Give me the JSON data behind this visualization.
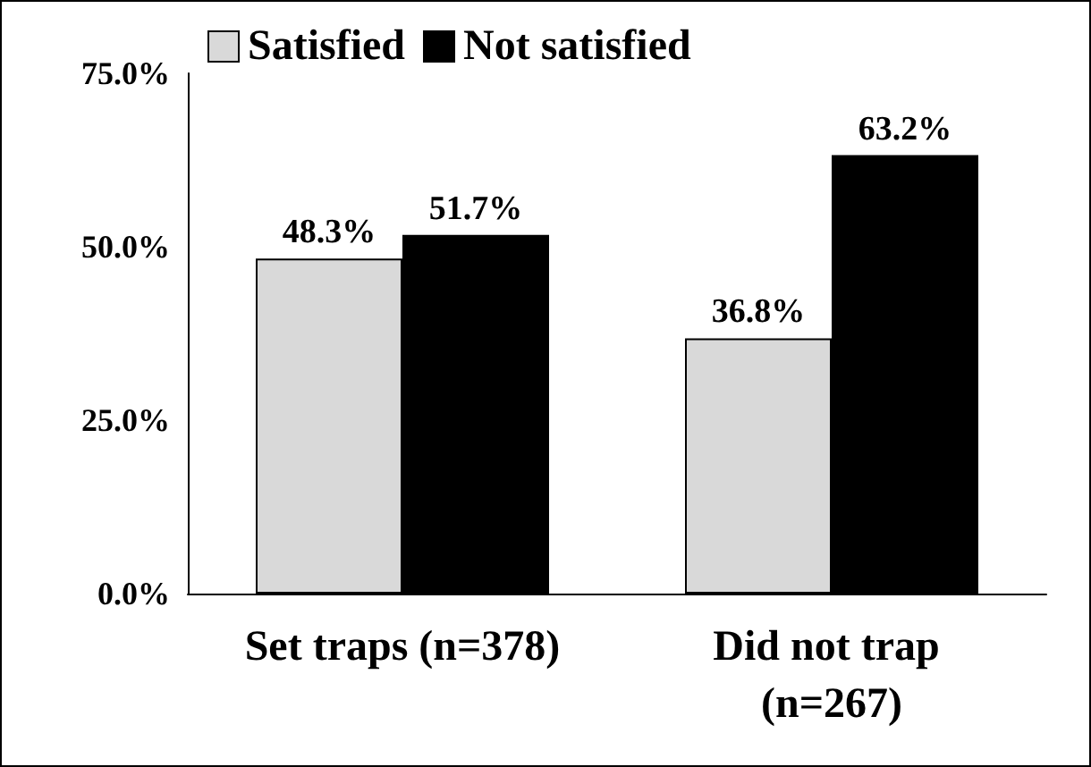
{
  "chart_data": {
    "type": "bar",
    "categories": [
      "Set traps (n=378)",
      "Did not trap (n=267)"
    ],
    "series": [
      {
        "name": "Satisfied",
        "color": "#d9d9d9",
        "values": [
          48.3,
          36.8
        ],
        "value_labels": [
          "48.3%",
          "36.8%"
        ]
      },
      {
        "name": "Not satisfied",
        "color": "#000000",
        "values": [
          51.7,
          63.2
        ],
        "value_labels": [
          "51.7%",
          "63.2%"
        ]
      }
    ],
    "ylim": [
      0,
      75
    ],
    "yticks": [
      {
        "value": 0,
        "label": "0.0%"
      },
      {
        "value": 25,
        "label": "25.0%"
      },
      {
        "value": 50,
        "label": "50.0%"
      },
      {
        "value": 75,
        "label": "75.0%"
      }
    ],
    "grid": false,
    "legend": "top left"
  }
}
